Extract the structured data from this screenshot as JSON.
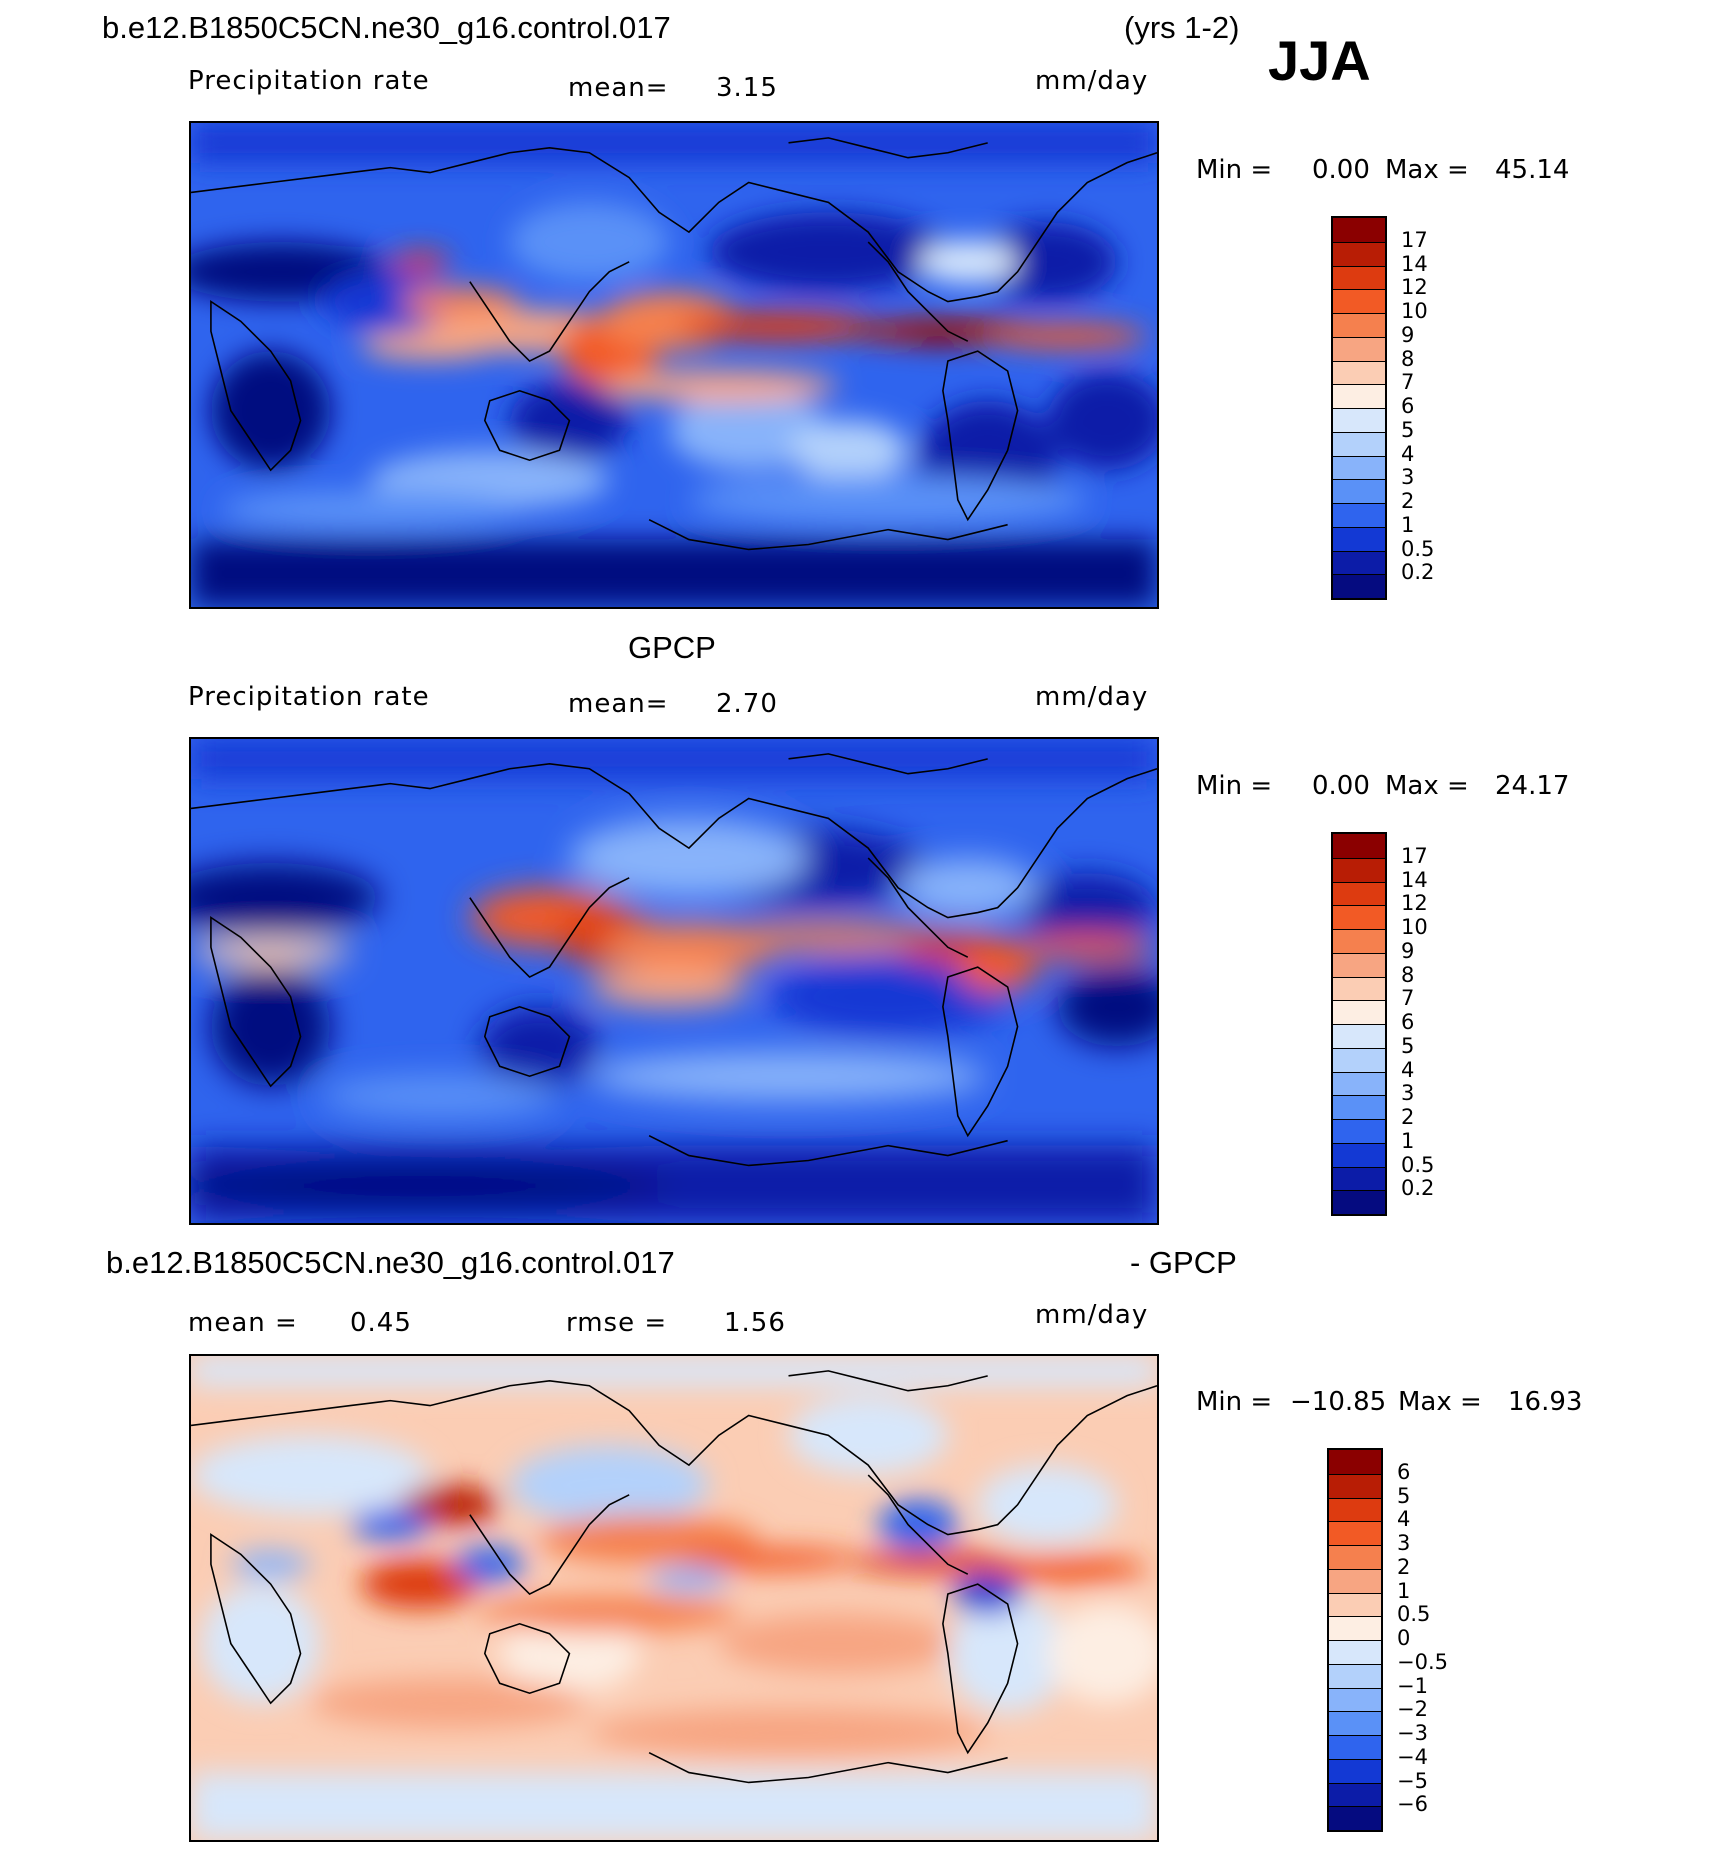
{
  "header": {
    "case_name": "b.e12.B1850C5CN.ne30_g16.control.017",
    "years": "(yrs 1-2)",
    "season": "JJA"
  },
  "panels": [
    {
      "title": "",
      "variable": "Precipitation rate",
      "stat": "mean=",
      "stat_value": "3.15",
      "units": "mm/day",
      "min_label": "Min =",
      "min_value": "0.00",
      "max_label": "Max =",
      "max_value": "45.14",
      "colorbar": {
        "labels": [
          "17",
          "14",
          "12",
          "10",
          "9",
          "8",
          "7",
          "6",
          "5",
          "4",
          "3",
          "2",
          "1",
          "0.5",
          "0.2"
        ],
        "colors": [
          "#8b0000",
          "#b81d05",
          "#dd3b10",
          "#f25a25",
          "#f5804e",
          "#f7a582",
          "#fbcdb4",
          "#fdeee3",
          "#d7e7fb",
          "#b3d1fb",
          "#88b3fa",
          "#5a91f7",
          "#2f64ee",
          "#1339d4",
          "#0c1ca8",
          "#050b80"
        ]
      }
    },
    {
      "title": "GPCP",
      "variable": "Precipitation rate",
      "stat": "mean=",
      "stat_value": "2.70",
      "units": "mm/day",
      "min_label": "Min =",
      "min_value": "0.00",
      "max_label": "Max =",
      "max_value": "24.17",
      "colorbar": {
        "labels": [
          "17",
          "14",
          "12",
          "10",
          "9",
          "8",
          "7",
          "6",
          "5",
          "4",
          "3",
          "2",
          "1",
          "0.5",
          "0.2"
        ],
        "colors": [
          "#8b0000",
          "#b81d05",
          "#dd3b10",
          "#f25a25",
          "#f5804e",
          "#f7a582",
          "#fbcdb4",
          "#fdeee3",
          "#d7e7fb",
          "#b3d1fb",
          "#88b3fa",
          "#5a91f7",
          "#2f64ee",
          "#1339d4",
          "#0c1ca8",
          "#050b80"
        ]
      }
    },
    {
      "title_left": "b.e12.B1850C5CN.ne30_g16.control.017",
      "title_right": "- GPCP",
      "stat": "mean =",
      "stat_value": "0.45",
      "stat2": "rmse =",
      "stat2_value": "1.56",
      "units": "mm/day",
      "min_label": "Min =",
      "min_value": "−10.85",
      "max_label": "Max =",
      "max_value": "16.93",
      "colorbar": {
        "labels": [
          "6",
          "5",
          "4",
          "3",
          "2",
          "1",
          "0.5",
          "0",
          "−0.5",
          "−1",
          "−2",
          "−3",
          "−4",
          "−5",
          "−6"
        ],
        "colors": [
          "#8b0000",
          "#b81d05",
          "#dd3b10",
          "#f25a25",
          "#f5804e",
          "#f7a582",
          "#fbcdb4",
          "#fdeee3",
          "#d7e7fb",
          "#b3d1fb",
          "#88b3fa",
          "#5a91f7",
          "#2f64ee",
          "#1339d4",
          "#0c1ca8",
          "#050b80"
        ]
      }
    }
  ]
}
